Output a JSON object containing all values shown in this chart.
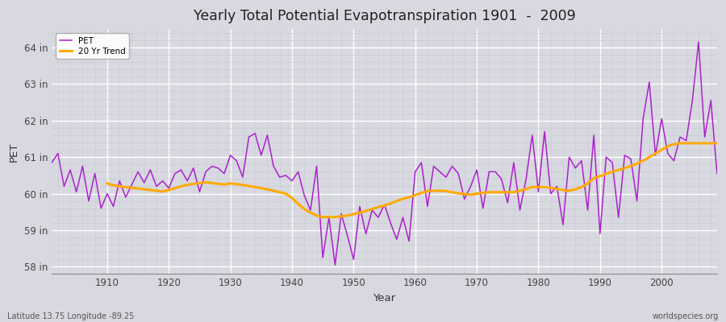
{
  "title": "Yearly Total Potential Evapotranspiration 1901  -  2009",
  "xlabel": "Year",
  "ylabel": "PET",
  "title_fontsize": 13,
  "bg_color": "#d8d8e0",
  "plot_bg_color": "#d8d8e0",
  "pet_color": "#aa22cc",
  "trend_color": "#ffaa00",
  "ylim": [
    57.8,
    64.5
  ],
  "yticks": [
    58,
    59,
    60,
    61,
    62,
    63,
    64
  ],
  "ytick_labels": [
    "58 in",
    "59 in",
    "60 in",
    "61 in",
    "62 in",
    "63 in",
    "64 in"
  ],
  "years": [
    1901,
    1902,
    1903,
    1904,
    1905,
    1906,
    1907,
    1908,
    1909,
    1910,
    1911,
    1912,
    1913,
    1914,
    1915,
    1916,
    1917,
    1918,
    1919,
    1920,
    1921,
    1922,
    1923,
    1924,
    1925,
    1926,
    1927,
    1928,
    1929,
    1930,
    1931,
    1932,
    1933,
    1934,
    1935,
    1936,
    1937,
    1938,
    1939,
    1940,
    1941,
    1942,
    1943,
    1944,
    1945,
    1946,
    1947,
    1948,
    1949,
    1950,
    1951,
    1952,
    1953,
    1954,
    1955,
    1956,
    1957,
    1958,
    1959,
    1960,
    1961,
    1962,
    1963,
    1964,
    1965,
    1966,
    1967,
    1968,
    1969,
    1970,
    1971,
    1972,
    1973,
    1974,
    1975,
    1976,
    1977,
    1978,
    1979,
    1980,
    1981,
    1982,
    1983,
    1984,
    1985,
    1986,
    1987,
    1988,
    1989,
    1990,
    1991,
    1992,
    1993,
    1994,
    1995,
    1996,
    1997,
    1998,
    1999,
    2000,
    2001,
    2002,
    2003,
    2004,
    2005,
    2006,
    2007,
    2008,
    2009
  ],
  "pet_values": [
    60.85,
    61.1,
    60.2,
    60.65,
    60.05,
    60.75,
    59.8,
    60.55,
    59.6,
    60.0,
    59.65,
    60.35,
    59.9,
    60.25,
    60.6,
    60.3,
    60.65,
    60.2,
    60.35,
    60.15,
    60.55,
    60.65,
    60.35,
    60.7,
    60.05,
    60.6,
    60.75,
    60.7,
    60.55,
    61.05,
    60.9,
    60.45,
    61.55,
    61.65,
    61.05,
    61.6,
    60.75,
    60.45,
    60.5,
    60.35,
    60.6,
    59.95,
    59.55,
    60.75,
    58.25,
    59.35,
    58.05,
    59.45,
    58.85,
    58.2,
    59.65,
    58.9,
    59.55,
    59.35,
    59.7,
    59.2,
    58.75,
    59.35,
    58.7,
    60.6,
    60.85,
    59.65,
    60.75,
    60.6,
    60.45,
    60.75,
    60.55,
    59.85,
    60.2,
    60.65,
    59.6,
    60.6,
    60.6,
    60.4,
    59.75,
    60.85,
    59.55,
    60.4,
    61.6,
    60.05,
    61.7,
    60.0,
    60.2,
    59.15,
    61.0,
    60.7,
    60.9,
    59.55,
    61.6,
    58.9,
    61.0,
    60.85,
    59.35,
    61.05,
    60.95,
    59.8,
    62.05,
    63.05,
    61.05,
    62.05,
    61.1,
    60.9,
    61.55,
    61.45,
    62.55,
    64.15,
    61.55,
    62.55,
    60.55
  ],
  "trend_years": [
    1910,
    1911,
    1912,
    1913,
    1914,
    1915,
    1916,
    1917,
    1918,
    1919,
    1920,
    1921,
    1922,
    1923,
    1924,
    1925,
    1926,
    1927,
    1928,
    1929,
    1930,
    1931,
    1932,
    1933,
    1934,
    1935,
    1936,
    1937,
    1938,
    1939,
    1940,
    1941,
    1942,
    1943,
    1944,
    1945,
    1946,
    1947,
    1948,
    1949,
    1950,
    1951,
    1952,
    1953,
    1954,
    1955,
    1956,
    1957,
    1958,
    1959,
    1960,
    1961,
    1962,
    1963,
    1964,
    1965,
    1966,
    1967,
    1968,
    1969,
    1970,
    1971,
    1972,
    1973,
    1974,
    1975,
    1976,
    1977,
    1978,
    1979,
    1980,
    1981,
    1982,
    1983,
    1984,
    1985,
    1986,
    1987,
    1988,
    1989,
    1990,
    1991,
    1992,
    1993,
    1994,
    1995,
    1996,
    1997,
    1998,
    1999,
    2000,
    2001,
    2002,
    2003,
    2004,
    2005,
    2006,
    2007,
    2008,
    2009
  ],
  "trend_values": [
    60.28,
    60.23,
    60.2,
    60.18,
    60.16,
    60.14,
    60.12,
    60.1,
    60.08,
    60.06,
    60.1,
    60.15,
    60.2,
    60.24,
    60.27,
    60.29,
    60.31,
    60.29,
    60.27,
    60.25,
    60.28,
    60.26,
    60.24,
    60.21,
    60.18,
    60.15,
    60.12,
    60.08,
    60.04,
    60.0,
    59.88,
    59.72,
    59.58,
    59.48,
    59.4,
    59.36,
    59.36,
    59.36,
    59.38,
    59.4,
    59.44,
    59.48,
    59.53,
    59.58,
    59.63,
    59.68,
    59.73,
    59.8,
    59.86,
    59.9,
    59.96,
    60.02,
    60.07,
    60.08,
    60.08,
    60.07,
    60.04,
    60.01,
    59.99,
    59.97,
    60.0,
    60.02,
    60.04,
    60.04,
    60.04,
    60.04,
    60.04,
    60.08,
    60.13,
    60.18,
    60.18,
    60.18,
    60.16,
    60.13,
    60.1,
    60.08,
    60.12,
    60.18,
    60.28,
    60.42,
    60.48,
    60.54,
    60.6,
    60.65,
    60.7,
    60.76,
    60.82,
    60.9,
    61.0,
    61.1,
    61.2,
    61.3,
    61.35,
    61.38,
    61.38,
    61.38,
    61.38,
    61.38,
    61.38,
    61.38
  ],
  "footer_left": "Latitude 13.75 Longitude -89.25",
  "footer_right": "worldspecies.org",
  "legend_labels": [
    "PET",
    "20 Yr Trend"
  ],
  "grid_color": "#ffffff",
  "grid_linewidth": 0.6,
  "minor_grid_color": "#cccccc",
  "spine_color": "#888888"
}
